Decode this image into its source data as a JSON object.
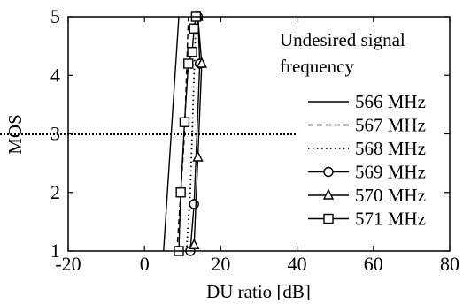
{
  "chart_data": {
    "type": "line",
    "title": "",
    "xlabel": "DU ratio [dB]",
    "ylabel": "MOS",
    "xlim": [
      -20,
      80
    ],
    "ylim": [
      1,
      5
    ],
    "xticks": [
      -20,
      0,
      20,
      40,
      60,
      80
    ],
    "yticks": [
      1,
      2,
      3,
      4,
      5
    ],
    "xtick_labels": [
      "-20",
      "0",
      "20",
      "40",
      "60",
      "80"
    ],
    "ytick_labels": [
      "1",
      "2",
      "3",
      "4",
      "5"
    ],
    "grid": false,
    "legend": {
      "title_lines": [
        "Undesired signal",
        "frequency"
      ],
      "placement": "right"
    },
    "reference_line": {
      "y": 3,
      "x_range": [
        -20,
        40
      ],
      "style": "dotted"
    },
    "series": [
      {
        "name": "566 MHz",
        "line_style": "solid",
        "marker": "none",
        "x": [
          5.0,
          6.0,
          7.0,
          8.0,
          9.0
        ],
        "y": [
          1.0,
          2.0,
          3.0,
          4.0,
          5.0
        ]
      },
      {
        "name": "567 MHz",
        "line_style": "dashed",
        "marker": "none",
        "x": [
          8.5,
          9.5,
          10.5,
          11.0,
          11.5
        ],
        "y": [
          1.0,
          2.0,
          3.0,
          4.0,
          5.0
        ]
      },
      {
        "name": "568 MHz",
        "line_style": "dotted",
        "marker": "none",
        "x": [
          11.0,
          12.0,
          12.5,
          13.0,
          13.5
        ],
        "y": [
          1.0,
          2.0,
          3.0,
          4.0,
          5.0
        ]
      },
      {
        "name": "569 MHz",
        "line_style": "solid",
        "marker": "circle",
        "x": [
          12.0,
          13.0,
          14.5,
          14.0
        ],
        "y": [
          1.0,
          1.8,
          4.2,
          5.0
        ]
      },
      {
        "name": "570 MHz",
        "line_style": "solid",
        "marker": "triangle",
        "x": [
          13.0,
          14.0,
          15.0,
          14.0
        ],
        "y": [
          1.1,
          2.6,
          4.2,
          5.0
        ]
      },
      {
        "name": "571 MHz",
        "line_style": "solid",
        "marker": "square",
        "x": [
          9.0,
          9.5,
          10.5,
          11.5,
          12.5,
          13.0,
          13.5
        ],
        "y": [
          1.0,
          2.0,
          3.2,
          4.2,
          4.4,
          4.8,
          5.0
        ]
      }
    ]
  }
}
